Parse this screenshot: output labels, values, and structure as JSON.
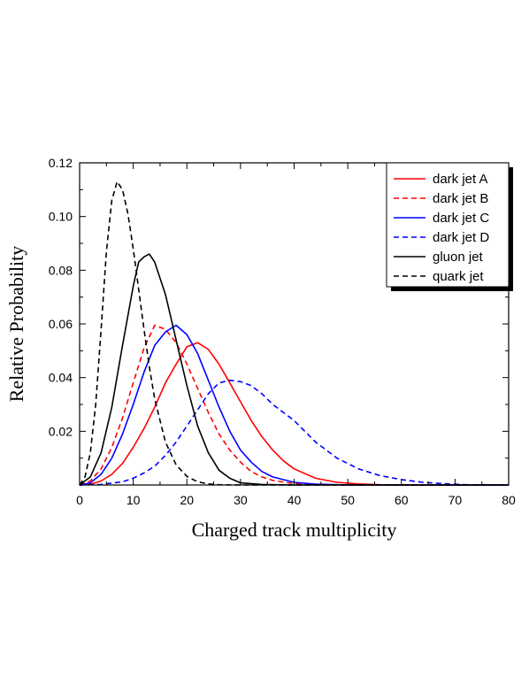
{
  "chart_data": {
    "type": "line",
    "xlabel": "Charged track multiplicity",
    "ylabel": "Relative Probability",
    "xlim": [
      0,
      80
    ],
    "ylim": [
      0,
      0.12
    ],
    "x_ticks": [
      "0",
      "10",
      "20",
      "30",
      "40",
      "50",
      "60",
      "70",
      "80"
    ],
    "y_ticks": [
      "0.02",
      "0.04",
      "0.06",
      "0.08",
      "0.10",
      "0.12"
    ],
    "grid": false,
    "legend_position": "top-right",
    "series": [
      {
        "name": "dark jet A",
        "color": "#ff0000",
        "dashed": false,
        "x": [
          0,
          2,
          4,
          6,
          8,
          10,
          12,
          14,
          16,
          18,
          20,
          22,
          24,
          26,
          28,
          30,
          32,
          34,
          36,
          38,
          40,
          44,
          48,
          52,
          56,
          60,
          64,
          70,
          80
        ],
        "y": [
          0,
          0.0003,
          0.0015,
          0.004,
          0.008,
          0.014,
          0.021,
          0.029,
          0.038,
          0.045,
          0.0515,
          0.053,
          0.0505,
          0.045,
          0.038,
          0.031,
          0.024,
          0.018,
          0.013,
          0.009,
          0.006,
          0.0025,
          0.001,
          0.0004,
          0.0001,
          0,
          0,
          0,
          0
        ]
      },
      {
        "name": "dark jet B",
        "color": "#ff0000",
        "dashed": true,
        "x": [
          0,
          2,
          4,
          6,
          8,
          10,
          12,
          14,
          16,
          18,
          20,
          22,
          24,
          26,
          28,
          30,
          32,
          34,
          36,
          40,
          44,
          50,
          60,
          80
        ],
        "y": [
          0,
          0.0015,
          0.006,
          0.014,
          0.025,
          0.038,
          0.051,
          0.0595,
          0.058,
          0.053,
          0.045,
          0.036,
          0.027,
          0.019,
          0.013,
          0.0085,
          0.005,
          0.003,
          0.0017,
          0.0005,
          0.0001,
          0,
          0,
          0
        ]
      },
      {
        "name": "dark jet C",
        "color": "#0000ff",
        "dashed": false,
        "x": [
          0,
          2,
          4,
          6,
          8,
          10,
          12,
          14,
          16,
          18,
          20,
          22,
          24,
          26,
          28,
          30,
          32,
          34,
          36,
          40,
          44,
          50,
          60,
          80
        ],
        "y": [
          0,
          0.0008,
          0.004,
          0.01,
          0.019,
          0.03,
          0.042,
          0.052,
          0.057,
          0.0595,
          0.056,
          0.049,
          0.039,
          0.029,
          0.02,
          0.013,
          0.0085,
          0.005,
          0.003,
          0.001,
          0.0003,
          0,
          0,
          0
        ]
      },
      {
        "name": "dark jet D",
        "color": "#0000ff",
        "dashed": true,
        "x": [
          0,
          4,
          8,
          10,
          12,
          14,
          16,
          18,
          20,
          22,
          24,
          26,
          28,
          30,
          32,
          34,
          36,
          38,
          40,
          42,
          44,
          46,
          48,
          50,
          52,
          56,
          60,
          64,
          68,
          72,
          80
        ],
        "y": [
          0,
          0.0002,
          0.0012,
          0.0025,
          0.0045,
          0.007,
          0.011,
          0.016,
          0.022,
          0.028,
          0.034,
          0.038,
          0.039,
          0.0385,
          0.037,
          0.034,
          0.03,
          0.027,
          0.024,
          0.02,
          0.016,
          0.013,
          0.01,
          0.008,
          0.006,
          0.0035,
          0.002,
          0.001,
          0.0005,
          0.0001,
          0
        ]
      },
      {
        "name": "gluon jet",
        "color": "#000000",
        "dashed": false,
        "x": [
          0,
          2,
          4,
          6,
          8,
          10,
          11,
          12,
          13,
          14,
          16,
          18,
          20,
          22,
          24,
          26,
          28,
          30,
          34,
          40,
          80
        ],
        "y": [
          0,
          0.003,
          0.012,
          0.029,
          0.052,
          0.074,
          0.083,
          0.085,
          0.086,
          0.083,
          0.071,
          0.054,
          0.037,
          0.022,
          0.012,
          0.0055,
          0.0025,
          0.0008,
          0.0002,
          0,
          0
        ]
      },
      {
        "name": "quark jet",
        "color": "#000000",
        "dashed": true,
        "x": [
          0,
          1,
          2,
          3,
          4,
          5,
          6,
          7,
          8,
          9,
          10,
          11,
          12,
          13,
          14,
          16,
          18,
          20,
          22,
          24,
          26,
          30,
          40,
          80
        ],
        "y": [
          0,
          0.003,
          0.012,
          0.03,
          0.058,
          0.087,
          0.106,
          0.113,
          0.11,
          0.101,
          0.088,
          0.073,
          0.058,
          0.044,
          0.032,
          0.016,
          0.0075,
          0.0032,
          0.0012,
          0.0004,
          0.0001,
          0,
          0,
          0
        ]
      }
    ]
  }
}
